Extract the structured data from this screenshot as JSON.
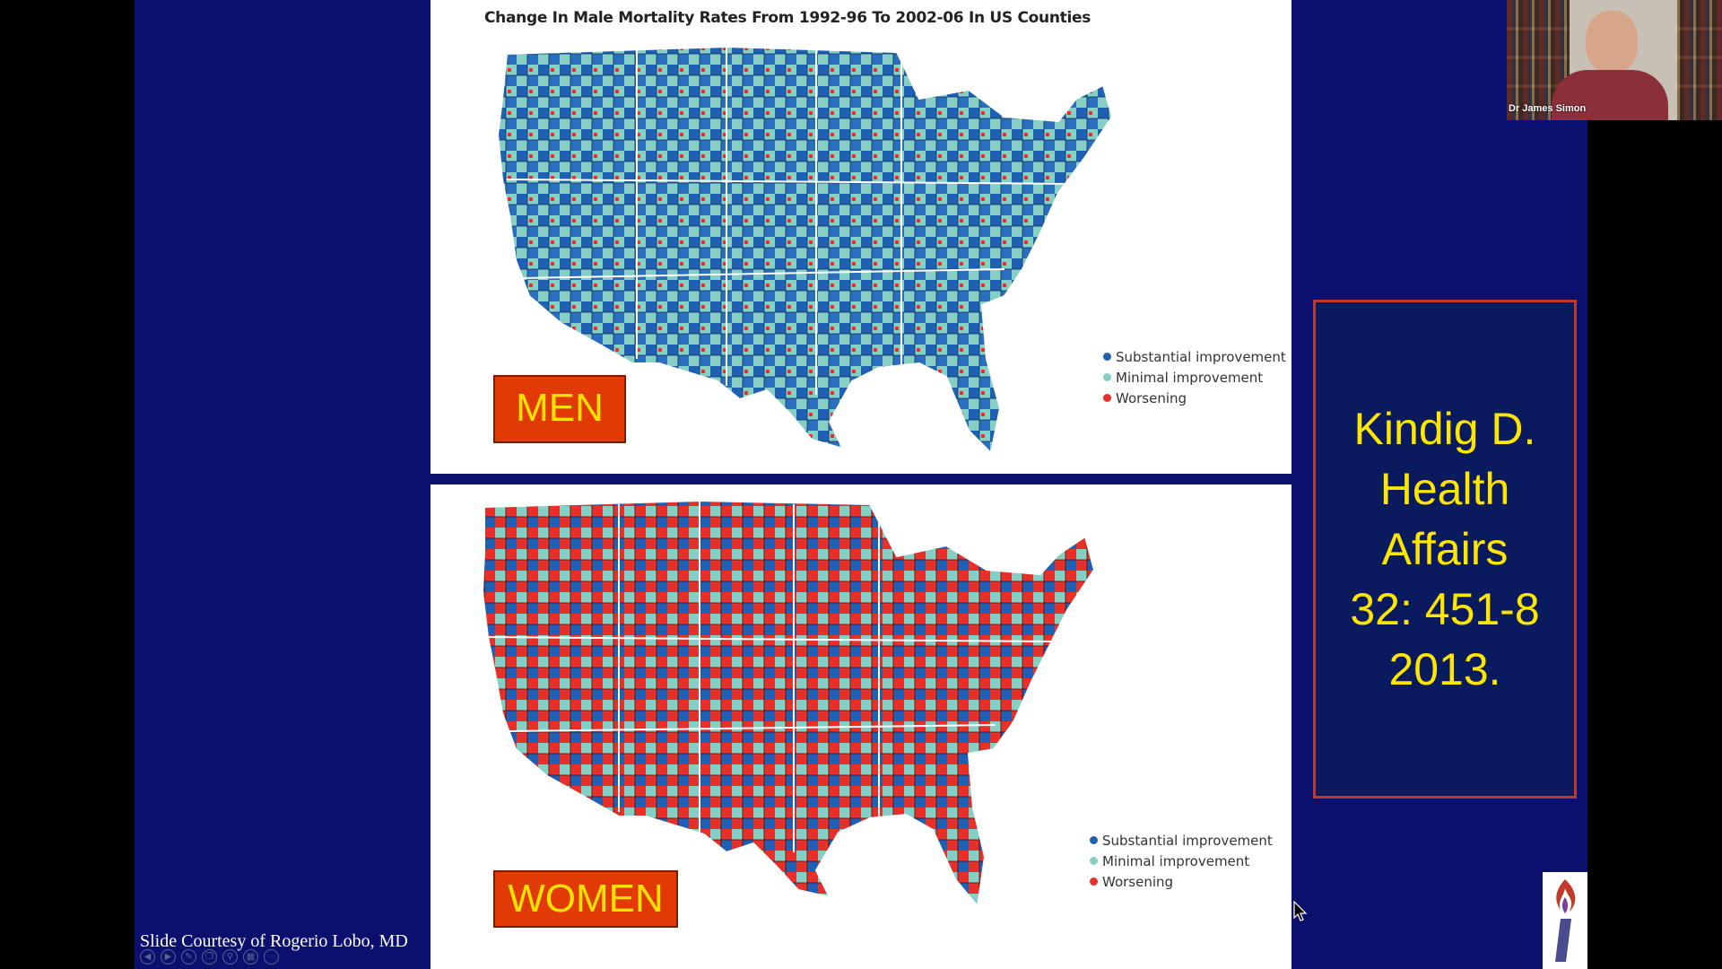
{
  "slide": {
    "men_map": {
      "title": "Change In Male Mortality Rates From 1992-96 To 2002-06 In US Counties",
      "label": "MEN",
      "legend": [
        {
          "label": "Substantial improvement",
          "color": "#1f5fb4"
        },
        {
          "label": "Minimal improvement",
          "color": "#86cfc4"
        },
        {
          "label": "Worsening",
          "color": "#e8302a"
        }
      ]
    },
    "women_map": {
      "label": "WOMEN",
      "legend": [
        {
          "label": "Substantial improvement",
          "color": "#1f5fb4"
        },
        {
          "label": "Minimal improvement",
          "color": "#86cfc4"
        },
        {
          "label": "Worsening",
          "color": "#e8302a"
        }
      ]
    },
    "citation": {
      "line1": "Kindig D.",
      "line2": "Health",
      "line3": "Affairs",
      "line4": "32: 451-8",
      "line5": "2013."
    },
    "credit": "Slide Courtesy of Rogerio Lobo, MD"
  },
  "webcam": {
    "name": "Dr James Simon"
  },
  "colors": {
    "slide_background": "#0b0f6e",
    "citation_text": "#ffe600",
    "label_background": "#e23a05",
    "label_text": "#ffe200"
  },
  "icons": [
    "prev-icon",
    "next-icon",
    "pen-icon",
    "copy-icon",
    "zoom-icon",
    "grid-icon",
    "more-icon",
    "torch-logo-icon",
    "mouse-cursor-icon"
  ]
}
